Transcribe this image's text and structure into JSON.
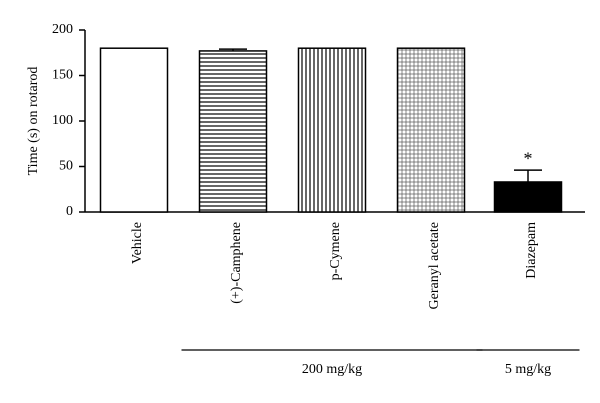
{
  "chart_data": {
    "type": "bar",
    "ylabel": "Time (s) on rotarod",
    "categories": [
      "Vehicle",
      "(+)-Camphene",
      "p-Cymene",
      "Geranyl acetate",
      "Diazepam"
    ],
    "values": [
      180,
      177,
      180,
      180,
      33
    ],
    "errors": [
      null,
      2,
      null,
      null,
      13
    ],
    "patterns": [
      "none",
      "horizontal",
      "vertical",
      "grid",
      "solid"
    ],
    "color": "#000000",
    "ylim": [
      0,
      200
    ],
    "yticks": [
      0,
      50,
      100,
      150,
      200
    ],
    "annotations": [
      {
        "text": "*",
        "category": 4
      }
    ],
    "groups": [
      {
        "label": "200 mg/kg",
        "first": 1,
        "last": 3
      },
      {
        "label": "5 mg/kg",
        "first": 4,
        "last": 4
      }
    ]
  }
}
